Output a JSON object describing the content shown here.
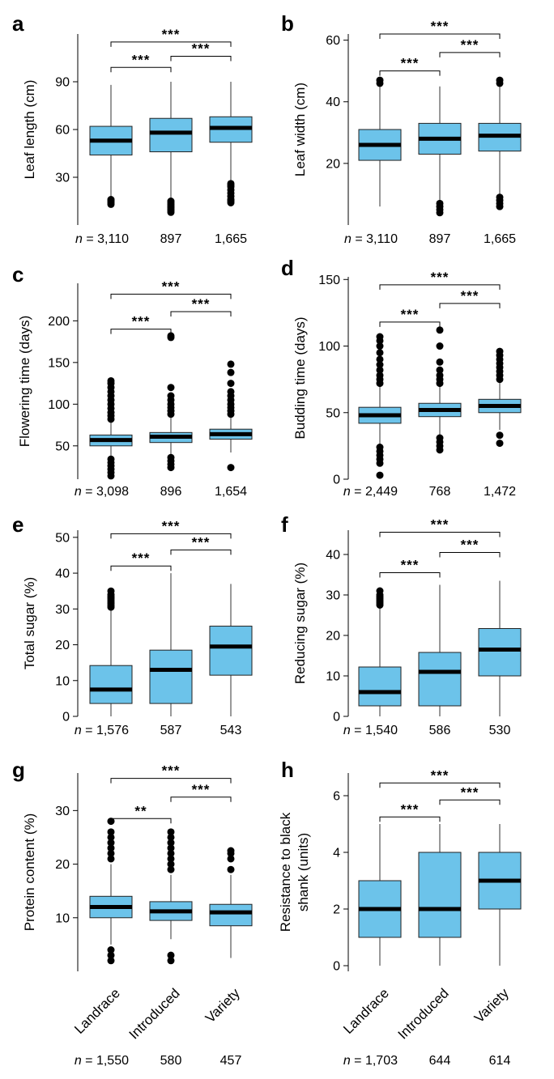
{
  "colors": {
    "box_fill": "#6cc3ea",
    "box_stroke": "#222222",
    "median": "#000000",
    "outlier": "#000000"
  },
  "chart_data": [
    {
      "panel": "a",
      "type": "boxplot",
      "ylabel": "Leaf length (cm)",
      "ylim": [
        0,
        120
      ],
      "yticks": [
        30,
        60,
        90
      ],
      "n_prefix": "n",
      "boxes": [
        {
          "n": "3,110",
          "whisker_low": 16,
          "q1": 44,
          "median": 53,
          "q3": 62,
          "whisker_high": 88,
          "outliers": [
            13,
            14,
            15,
            16
          ]
        },
        {
          "n": "897",
          "whisker_low": 16,
          "q1": 46,
          "median": 58,
          "q3": 67,
          "whisker_high": 90,
          "outliers": [
            8,
            9,
            10,
            11,
            12,
            13,
            14,
            15
          ]
        },
        {
          "n": "1,665",
          "whisker_low": 27,
          "q1": 52,
          "median": 61,
          "q3": 68,
          "whisker_high": 90,
          "outliers": [
            14,
            15,
            16,
            18,
            20,
            22,
            24,
            25,
            26
          ]
        }
      ],
      "sig": [
        {
          "from": 0,
          "to": 1,
          "label": "***",
          "y": 99
        },
        {
          "from": 1,
          "to": 2,
          "label": "***",
          "y": 106
        },
        {
          "from": 0,
          "to": 2,
          "label": "***",
          "y": 115
        }
      ]
    },
    {
      "panel": "b",
      "type": "boxplot",
      "ylabel": "Leaf width (cm)",
      "ylim": [
        0,
        62
      ],
      "yticks": [
        20,
        40,
        60
      ],
      "n_prefix": "n",
      "boxes": [
        {
          "n": "3,110",
          "whisker_low": 6,
          "q1": 21,
          "median": 26,
          "q3": 31,
          "whisker_high": 46,
          "outliers": [
            46,
            47
          ]
        },
        {
          "n": "897",
          "whisker_low": 8,
          "q1": 23,
          "median": 28,
          "q3": 33,
          "whisker_high": 45,
          "outliers": [
            4,
            5,
            6,
            7
          ]
        },
        {
          "n": "1,665",
          "whisker_low": 10,
          "q1": 24,
          "median": 29,
          "q3": 33,
          "whisker_high": 45,
          "outliers": [
            6,
            7,
            8,
            9,
            46,
            47
          ]
        }
      ],
      "sig": [
        {
          "from": 0,
          "to": 1,
          "label": "***",
          "y": 50
        },
        {
          "from": 1,
          "to": 2,
          "label": "***",
          "y": 56
        },
        {
          "from": 0,
          "to": 2,
          "label": "***",
          "y": 62
        }
      ]
    },
    {
      "panel": "c",
      "type": "boxplot",
      "ylabel": "Flowering time (days)",
      "ylim": [
        10,
        245
      ],
      "yticks": [
        50,
        100,
        150,
        200
      ],
      "n_prefix": "n",
      "boxes": [
        {
          "n": "3,098",
          "whisker_low": 35,
          "q1": 50,
          "median": 57,
          "q3": 63,
          "whisker_high": 80,
          "outliers": [
            14,
            18,
            22,
            26,
            30,
            34,
            82,
            86,
            90,
            95,
            100,
            105,
            110,
            115,
            120,
            125,
            128
          ]
        },
        {
          "n": "896",
          "whisker_low": 38,
          "q1": 54,
          "median": 61,
          "q3": 66,
          "whisker_high": 85,
          "outliers": [
            24,
            28,
            32,
            36,
            88,
            92,
            96,
            100,
            105,
            110,
            120,
            180,
            182
          ]
        },
        {
          "n": "1,654",
          "whisker_low": 42,
          "q1": 58,
          "median": 64,
          "q3": 70,
          "whisker_high": 85,
          "outliers": [
            24,
            88,
            92,
            96,
            100,
            105,
            110,
            115,
            125,
            138,
            148
          ]
        }
      ],
      "sig": [
        {
          "from": 0,
          "to": 1,
          "label": "***",
          "y": 190
        },
        {
          "from": 1,
          "to": 2,
          "label": "***",
          "y": 211
        },
        {
          "from": 0,
          "to": 2,
          "label": "***",
          "y": 232
        }
      ]
    },
    {
      "panel": "d",
      "type": "boxplot",
      "ylabel": "Budding time (days)",
      "ylim": [
        0,
        152
      ],
      "yticks": [
        0,
        50,
        100,
        150
      ],
      "n_prefix": "n",
      "boxes": [
        {
          "n": "2,449",
          "whisker_low": 25,
          "q1": 42,
          "median": 48,
          "q3": 54,
          "whisker_high": 70,
          "outliers": [
            3,
            12,
            15,
            18,
            21,
            24,
            72,
            75,
            78,
            82,
            86,
            90,
            95,
            100,
            104,
            107
          ]
        },
        {
          "n": "768",
          "whisker_low": 32,
          "q1": 47,
          "median": 52,
          "q3": 57,
          "whisker_high": 70,
          "outliers": [
            22,
            25,
            28,
            31,
            72,
            75,
            78,
            82,
            88,
            100,
            112
          ]
        },
        {
          "n": "1,472",
          "whisker_low": 37,
          "q1": 50,
          "median": 55,
          "q3": 60,
          "whisker_high": 73,
          "outliers": [
            27,
            33,
            75,
            78,
            81,
            84,
            87,
            90,
            93,
            96
          ]
        }
      ],
      "sig": [
        {
          "from": 0,
          "to": 1,
          "label": "***",
          "y": 118
        },
        {
          "from": 1,
          "to": 2,
          "label": "***",
          "y": 132
        },
        {
          "from": 0,
          "to": 2,
          "label": "***",
          "y": 146
        }
      ]
    },
    {
      "panel": "e",
      "type": "boxplot",
      "ylabel": "Total sugar (%)",
      "ylim": [
        0,
        52
      ],
      "yticks": [
        0,
        10,
        20,
        30,
        40,
        50
      ],
      "n_prefix": "n",
      "boxes": [
        {
          "n": "1,576",
          "whisker_low": 0,
          "q1": 3.6,
          "median": 7.5,
          "q3": 14.2,
          "whisker_high": 30,
          "outliers": [
            30.5,
            31,
            31.5,
            32,
            32.5,
            33,
            33.5,
            34,
            35
          ]
        },
        {
          "n": "587",
          "whisker_low": 0,
          "q1": 3.6,
          "median": 13,
          "q3": 18.5,
          "whisker_high": 40,
          "outliers": []
        },
        {
          "n": "543",
          "whisker_low": 0,
          "q1": 11.5,
          "median": 19.5,
          "q3": 25.2,
          "whisker_high": 37,
          "outliers": []
        }
      ],
      "sig": [
        {
          "from": 0,
          "to": 1,
          "label": "***",
          "y": 42
        },
        {
          "from": 1,
          "to": 2,
          "label": "***",
          "y": 46.5
        },
        {
          "from": 0,
          "to": 2,
          "label": "***",
          "y": 51
        }
      ]
    },
    {
      "panel": "f",
      "type": "boxplot",
      "ylabel": "Reducing sugar (%)",
      "ylim": [
        0,
        46
      ],
      "yticks": [
        0,
        10,
        20,
        30,
        40
      ],
      "n_prefix": "n",
      "boxes": [
        {
          "n": "1,540",
          "whisker_low": 0,
          "q1": 2.6,
          "median": 6,
          "q3": 12.2,
          "whisker_high": 27,
          "outliers": [
            27.5,
            28,
            28.5,
            29,
            29.5,
            30,
            31
          ]
        },
        {
          "n": "586",
          "whisker_low": 0,
          "q1": 2.6,
          "median": 11,
          "q3": 15.8,
          "whisker_high": 32.5,
          "outliers": []
        },
        {
          "n": "530",
          "whisker_low": 0,
          "q1": 10,
          "median": 16.5,
          "q3": 21.7,
          "whisker_high": 33.5,
          "outliers": []
        }
      ],
      "sig": [
        {
          "from": 0,
          "to": 1,
          "label": "***",
          "y": 35.5
        },
        {
          "from": 1,
          "to": 2,
          "label": "***",
          "y": 40.5
        },
        {
          "from": 0,
          "to": 2,
          "label": "***",
          "y": 45.5
        }
      ]
    },
    {
      "panel": "g",
      "type": "boxplot",
      "ylabel": "Protein content (%)",
      "ylim": [
        0,
        37
      ],
      "yticks": [
        10,
        20,
        30
      ],
      "n_prefix": "n",
      "categories": [
        "Landrace",
        "Introduced",
        "Variety"
      ],
      "boxes": [
        {
          "n": "1,550",
          "whisker_low": 5,
          "q1": 10,
          "median": 12,
          "q3": 14,
          "whisker_high": 20,
          "outliers": [
            2,
            3,
            4,
            21,
            22,
            23,
            24,
            25,
            26,
            28
          ]
        },
        {
          "n": "580",
          "whisker_low": 6,
          "q1": 9.5,
          "median": 11.2,
          "q3": 13,
          "whisker_high": 18,
          "outliers": [
            2,
            3,
            19,
            20,
            21,
            22,
            23,
            24,
            25,
            26
          ]
        },
        {
          "n": "457",
          "whisker_low": 2.5,
          "q1": 8.5,
          "median": 11,
          "q3": 12.5,
          "whisker_high": 18,
          "outliers": [
            19,
            21,
            22,
            22.5
          ]
        }
      ],
      "sig": [
        {
          "from": 0,
          "to": 1,
          "label": "**",
          "y": 28.5
        },
        {
          "from": 1,
          "to": 2,
          "label": "***",
          "y": 32.5
        },
        {
          "from": 0,
          "to": 2,
          "label": "***",
          "y": 36
        }
      ]
    },
    {
      "panel": "h",
      "type": "boxplot",
      "ylabel": "Resistance to black shank (units)",
      "ylabel_lines": [
        "Resistance to black",
        "shank (units)"
      ],
      "ylim": [
        -0.2,
        6.8
      ],
      "yticks": [
        0,
        2,
        4,
        6
      ],
      "n_prefix": "n",
      "categories": [
        "Landrace",
        "Introduced",
        "Variety"
      ],
      "boxes": [
        {
          "n": "1,703",
          "whisker_low": 0,
          "q1": 1,
          "median": 2,
          "q3": 3,
          "whisker_high": 5,
          "outliers": []
        },
        {
          "n": "644",
          "whisker_low": 0,
          "q1": 1,
          "median": 2,
          "q3": 4,
          "whisker_high": 5,
          "outliers": []
        },
        {
          "n": "614",
          "whisker_low": 0,
          "q1": 2,
          "median": 3,
          "q3": 4,
          "whisker_high": 5,
          "outliers": []
        }
      ],
      "sig": [
        {
          "from": 0,
          "to": 1,
          "label": "***",
          "y": 5.25
        },
        {
          "from": 1,
          "to": 2,
          "label": "***",
          "y": 5.85
        },
        {
          "from": 0,
          "to": 2,
          "label": "***",
          "y": 6.45
        }
      ]
    }
  ]
}
